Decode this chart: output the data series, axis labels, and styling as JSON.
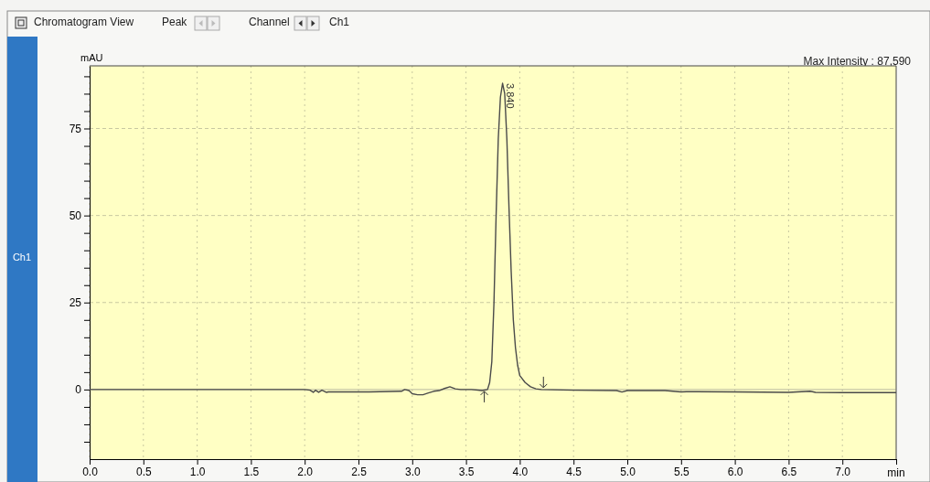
{
  "chart_data": {
    "type": "line",
    "ylabel": "mAU",
    "xlabel": "min",
    "annotations": [
      "Chromatogram View",
      "Peak",
      "Channel",
      "Ch1",
      "Ch1",
      "Max Intensity : 87,590",
      {
        "text": "3.840",
        "x": 3.84,
        "y": 88
      }
    ],
    "x": [
      0,
      0.5,
      1,
      1.5,
      2,
      2.05,
      2.08,
      2.1,
      2.13,
      2.16,
      2.2,
      2.22,
      2.3,
      2.6,
      2.9,
      2.93,
      2.97,
      3.0,
      3.05,
      3.1,
      3.15,
      3.2,
      3.25,
      3.3,
      3.35,
      3.4,
      3.45,
      3.55,
      3.65,
      3.7,
      3.72,
      3.74,
      3.76,
      3.78,
      3.8,
      3.82,
      3.84,
      3.86,
      3.88,
      3.9,
      3.92,
      3.94,
      3.96,
      3.98,
      4.0,
      4.05,
      4.1,
      4.15,
      4.2,
      4.5,
      4.9,
      4.95,
      5.0,
      5.35,
      5.5,
      5.55,
      6.0,
      6.5,
      6.7,
      6.75,
      7.0,
      7.5
    ],
    "series": [
      {
        "color": "#4a4a4a",
        "values": [
          0,
          0,
          0,
          0,
          0,
          -0.2,
          -0.8,
          -0.2,
          -0.8,
          -0.2,
          -0.8,
          -0.7,
          -0.7,
          -0.7,
          -0.5,
          0,
          -0.3,
          -1.2,
          -1.5,
          -1.5,
          -1,
          -0.5,
          -0.3,
          0.3,
          0.8,
          0.2,
          0,
          0,
          -0.3,
          0,
          2,
          8,
          25,
          50,
          72,
          84,
          88,
          85,
          72,
          52,
          34,
          20,
          12,
          7,
          4,
          2,
          0.8,
          0.2,
          0,
          -0.2,
          -0.3,
          -0.7,
          -0.3,
          -0.3,
          -0.7,
          -0.6,
          -0.7,
          -0.8,
          -0.5,
          -0.8,
          -0.9,
          -0.9
        ]
      }
    ],
    "xlim": [
      0,
      7.5
    ],
    "ylim": [
      -20,
      93
    ],
    "xticks": [
      {
        "value": 0,
        "label": "0.0"
      },
      {
        "value": 0.5,
        "label": "0.5"
      },
      {
        "value": 1,
        "label": "1.0"
      },
      {
        "value": 1.5,
        "label": "1.5"
      },
      {
        "value": 2,
        "label": "2.0"
      },
      {
        "value": 2.5,
        "label": "2.5"
      },
      {
        "value": 3,
        "label": "3.0"
      },
      {
        "value": 3.5,
        "label": "3.5"
      },
      {
        "value": 4,
        "label": "4.0"
      },
      {
        "value": 4.5,
        "label": "4.5"
      },
      {
        "value": 5,
        "label": "5.0"
      },
      {
        "value": 5.5,
        "label": "5.5"
      },
      {
        "value": 6,
        "label": "6.0"
      },
      {
        "value": 6.5,
        "label": "6.5"
      },
      {
        "value": 7,
        "label": "7.0"
      },
      {
        "value": 7.5,
        "label": null
      }
    ],
    "yticks": [
      {
        "value": -15,
        "label": null
      },
      {
        "value": -10,
        "label": null
      },
      {
        "value": -5,
        "label": null
      },
      0,
      {
        "value": 5,
        "label": null
      },
      {
        "value": 10,
        "label": null
      },
      {
        "value": 15,
        "label": null
      },
      {
        "value": 20,
        "label": null
      },
      25,
      {
        "value": 30,
        "label": null
      },
      {
        "value": 35,
        "label": null
      },
      {
        "value": 40,
        "label": null
      },
      {
        "value": 45,
        "label": null
      },
      50,
      {
        "value": 55,
        "label": null
      },
      {
        "value": 60,
        "label": null
      },
      {
        "value": 65,
        "label": null
      },
      {
        "value": 70,
        "label": null
      },
      75,
      {
        "value": 80,
        "label": null
      },
      {
        "value": 85,
        "label": null
      },
      {
        "value": 90,
        "label": null
      }
    ],
    "grid": true,
    "marker": "none",
    "line_style": "solid"
  }
}
